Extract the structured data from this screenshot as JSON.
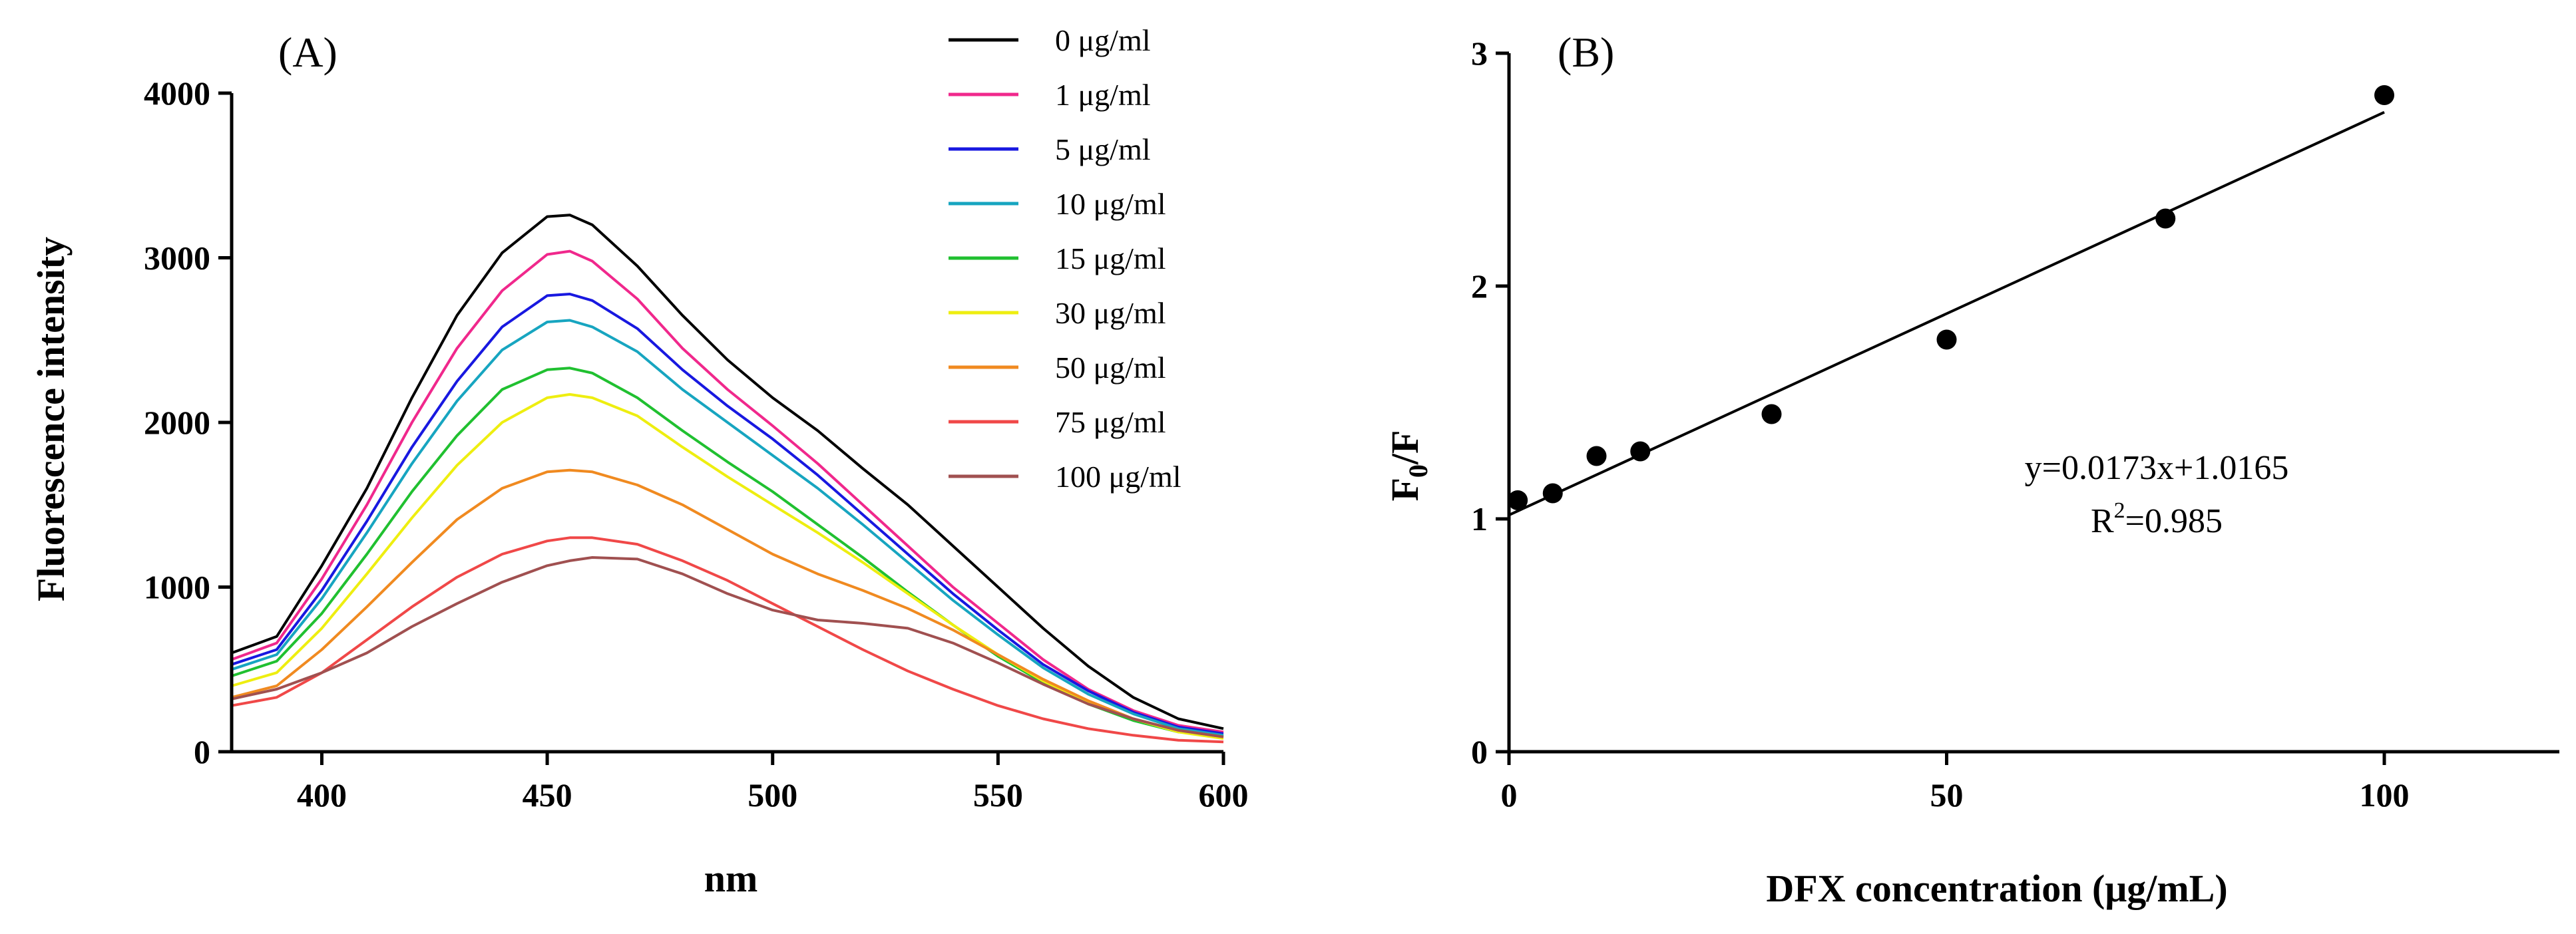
{
  "chart_data": [
    {
      "type": "line",
      "panel_label": "(A)",
      "xlabel": "nm",
      "ylabel": "Fluorescence intensity",
      "xlim": [
        380,
        600
      ],
      "ylim": [
        0,
        4000
      ],
      "xticks": [
        400,
        450,
        500,
        550,
        600
      ],
      "yticks": [
        0,
        1000,
        2000,
        3000,
        4000
      ],
      "legend_position": "top-right",
      "series": [
        {
          "name": "0 μg/ml",
          "color": "#000000",
          "x": [
            380,
            390,
            400,
            410,
            420,
            430,
            440,
            450,
            455,
            460,
            470,
            480,
            490,
            500,
            510,
            520,
            530,
            540,
            550,
            560,
            570,
            580,
            590,
            600
          ],
          "y": [
            600,
            700,
            1130,
            1600,
            2150,
            2650,
            3030,
            3250,
            3260,
            3200,
            2950,
            2650,
            2380,
            2150,
            1950,
            1720,
            1500,
            1250,
            1000,
            750,
            520,
            330,
            200,
            140
          ]
        },
        {
          "name": "1 μg/ml",
          "color": "#f0288c",
          "x": [
            380,
            390,
            400,
            410,
            420,
            430,
            440,
            450,
            455,
            460,
            470,
            480,
            490,
            500,
            510,
            520,
            530,
            540,
            550,
            560,
            570,
            580,
            590,
            600
          ],
          "y": [
            560,
            660,
            1050,
            1500,
            2000,
            2450,
            2800,
            3020,
            3040,
            2980,
            2750,
            2450,
            2200,
            1980,
            1750,
            1500,
            1250,
            1000,
            780,
            560,
            380,
            250,
            160,
            120
          ]
        },
        {
          "name": "5 μg/ml",
          "color": "#1818e0",
          "x": [
            380,
            390,
            400,
            410,
            420,
            430,
            440,
            450,
            455,
            460,
            470,
            480,
            490,
            500,
            510,
            520,
            530,
            540,
            550,
            560,
            570,
            580,
            590,
            600
          ],
          "y": [
            530,
            620,
            980,
            1400,
            1850,
            2250,
            2580,
            2770,
            2780,
            2740,
            2570,
            2320,
            2100,
            1900,
            1680,
            1440,
            1200,
            960,
            740,
            530,
            370,
            240,
            150,
            110
          ]
        },
        {
          "name": "10 μg/ml",
          "color": "#17a5c0",
          "x": [
            380,
            390,
            400,
            410,
            420,
            430,
            440,
            450,
            455,
            460,
            470,
            480,
            490,
            500,
            510,
            520,
            530,
            540,
            550,
            560,
            570,
            580,
            590,
            600
          ],
          "y": [
            500,
            590,
            930,
            1330,
            1750,
            2130,
            2440,
            2610,
            2620,
            2580,
            2430,
            2200,
            2000,
            1800,
            1600,
            1380,
            1150,
            920,
            710,
            510,
            350,
            230,
            140,
            100
          ]
        },
        {
          "name": "15 μg/ml",
          "color": "#20c030",
          "x": [
            380,
            390,
            400,
            410,
            420,
            430,
            440,
            450,
            455,
            460,
            470,
            480,
            490,
            500,
            510,
            520,
            530,
            540,
            550,
            560,
            570,
            580,
            590,
            600
          ],
          "y": [
            460,
            550,
            840,
            1200,
            1580,
            1920,
            2200,
            2320,
            2330,
            2300,
            2150,
            1950,
            1760,
            1580,
            1380,
            1180,
            970,
            770,
            580,
            420,
            290,
            190,
            120,
            90
          ]
        },
        {
          "name": "30 μg/ml",
          "color": "#eeee10",
          "x": [
            380,
            390,
            400,
            410,
            420,
            430,
            440,
            450,
            455,
            460,
            470,
            480,
            490,
            500,
            510,
            520,
            530,
            540,
            550,
            560,
            570,
            580,
            590,
            600
          ],
          "y": [
            400,
            480,
            750,
            1080,
            1420,
            1740,
            2000,
            2150,
            2170,
            2150,
            2040,
            1850,
            1670,
            1500,
            1330,
            1150,
            960,
            770,
            590,
            430,
            300,
            200,
            120,
            80
          ]
        },
        {
          "name": "50 μg/ml",
          "color": "#f08a20",
          "x": [
            380,
            390,
            400,
            410,
            420,
            430,
            440,
            450,
            455,
            460,
            470,
            480,
            490,
            500,
            510,
            520,
            530,
            540,
            550,
            560,
            570,
            580,
            590,
            600
          ],
          "y": [
            330,
            400,
            620,
            880,
            1150,
            1410,
            1600,
            1700,
            1710,
            1700,
            1620,
            1500,
            1350,
            1200,
            1080,
            980,
            870,
            740,
            590,
            440,
            310,
            200,
            130,
            90
          ]
        },
        {
          "name": "75 μg/ml",
          "color": "#f04848",
          "x": [
            380,
            390,
            400,
            410,
            420,
            430,
            440,
            450,
            455,
            460,
            470,
            480,
            490,
            500,
            510,
            520,
            530,
            540,
            550,
            560,
            570,
            580,
            590,
            600
          ],
          "y": [
            280,
            330,
            480,
            680,
            880,
            1060,
            1200,
            1280,
            1300,
            1300,
            1260,
            1160,
            1040,
            900,
            760,
            620,
            490,
            380,
            280,
            200,
            140,
            100,
            70,
            60
          ]
        },
        {
          "name": "100 μg/ml",
          "color": "#a05050",
          "x": [
            380,
            390,
            400,
            410,
            420,
            430,
            440,
            450,
            455,
            460,
            470,
            480,
            490,
            500,
            510,
            520,
            530,
            540,
            550,
            560,
            570,
            580,
            590,
            600
          ],
          "y": [
            320,
            380,
            480,
            600,
            760,
            900,
            1030,
            1130,
            1160,
            1180,
            1170,
            1080,
            960,
            860,
            800,
            780,
            750,
            660,
            540,
            410,
            290,
            200,
            130,
            90
          ]
        }
      ]
    },
    {
      "type": "scatter",
      "panel_label": "(B)",
      "xlabel": "DFX concentration (μg/mL)",
      "ylabel": {
        "main": "F",
        "sub": "0",
        "rest": "/F"
      },
      "xlim": [
        0,
        120
      ],
      "ylim": [
        0,
        3
      ],
      "xticks": [
        0,
        50,
        100
      ],
      "yticks": [
        0,
        1,
        2,
        3
      ],
      "x": [
        1,
        5,
        10,
        15,
        30,
        50,
        75,
        100
      ],
      "y": [
        1.08,
        1.11,
        1.27,
        1.29,
        1.45,
        1.77,
        2.29,
        2.82
      ],
      "fit": {
        "slope": 0.0173,
        "intercept": 1.0165,
        "x_range": [
          0,
          100
        ]
      },
      "equation": "y=0.0173x+1.0165",
      "r2": {
        "main": "R",
        "sup": "2",
        "rest": "=0.985"
      }
    }
  ]
}
